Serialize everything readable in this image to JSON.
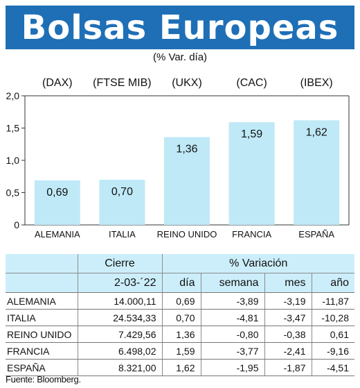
{
  "header": {
    "title": "Bolsas Europeas",
    "subtitle": "(% Var. día)"
  },
  "colors": {
    "banner": "#1e6fb6",
    "bar": "#bfe9f7",
    "table_header": "#cceefa"
  },
  "chart_data": {
    "type": "bar",
    "title": "Bolsas Europeas",
    "subtitle": "(% Var. día)",
    "index_labels": [
      "(DAX)",
      "(FTSE MIB)",
      "(UKX)",
      "(CAC)",
      "(IBEX)"
    ],
    "categories": [
      "ALEMANIA",
      "ITALIA",
      "REINO UNIDO",
      "FRANCIA",
      "ESPAÑA"
    ],
    "values": [
      0.69,
      0.7,
      1.36,
      1.59,
      1.62
    ],
    "value_labels": [
      "0,69",
      "0,70",
      "1,36",
      "1,59",
      "1,62"
    ],
    "yticks": [
      0,
      0.5,
      1.0,
      1.5,
      2.0
    ],
    "ytick_labels": [
      "0",
      "0,5",
      "1,0",
      "1,5",
      "2,0"
    ],
    "ylim": [
      0,
      2.0
    ],
    "xlabel": "",
    "ylabel": "",
    "grid": false
  },
  "table": {
    "group_headers": [
      "Cierre",
      "% Variación"
    ],
    "date_header": "2-03-´22",
    "period_headers": [
      "día",
      "semana",
      "mes",
      "año"
    ],
    "rows": [
      {
        "country": "ALEMANIA",
        "cierre": "14.000,11",
        "dia": "0,69",
        "semana": "-3,89",
        "mes": "-3,19",
        "anio": "-11,87"
      },
      {
        "country": "ITALIA",
        "cierre": "24.534,33",
        "dia": "0,70",
        "semana": "-4,81",
        "mes": "-3,47",
        "anio": "-10,28"
      },
      {
        "country": "REINO UNIDO",
        "cierre": "7.429,56",
        "dia": "1,36",
        "semana": "-0,80",
        "mes": "-0,38",
        "anio": "0,61"
      },
      {
        "country": "FRANCIA",
        "cierre": "6.498,02",
        "dia": "1,59",
        "semana": "-3,77",
        "mes": "-2,41",
        "anio": "-9,16"
      },
      {
        "country": "ESPAÑA",
        "cierre": "8.321,00",
        "dia": "1,62",
        "semana": "-1,95",
        "mes": "-1,87",
        "anio": "-4,51"
      }
    ]
  },
  "footer": {
    "source": "Fuente: Bloomberg."
  }
}
